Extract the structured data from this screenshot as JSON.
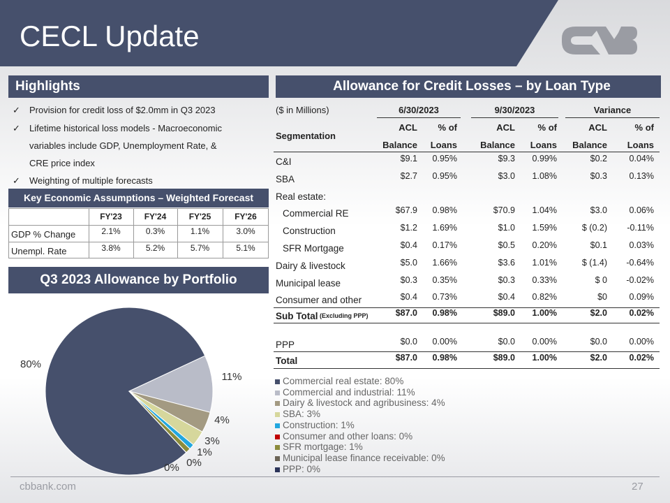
{
  "header": {
    "title": "CECL Update"
  },
  "highlights": {
    "heading": "Highlights",
    "bullets": [
      "Provision for credit loss of $2.0mm in Q3 2023",
      "Lifetime historical loss models - Macroeconomic",
      "variables include GDP, Unemployment Rate, &",
      "CRE price index",
      "Weighting of multiple forecasts"
    ]
  },
  "assumptions": {
    "heading": "Key Economic Assumptions – Weighted Forecast",
    "columns": [
      "FY'23",
      "FY'24",
      "FY'25",
      "FY'26"
    ],
    "rows": [
      {
        "label": "GDP % Change",
        "cells": [
          "2.1%",
          "0.3%",
          "1.1%",
          "3.0%"
        ]
      },
      {
        "label": "Unempl. Rate",
        "cells": [
          "3.8%",
          "5.2%",
          "5.7%",
          "5.1%"
        ]
      }
    ]
  },
  "portfolio": {
    "heading": "Q3 2023 Allowance by Portfolio",
    "chart": {
      "type": "pie",
      "categories": [
        "Commercial real estate: 80%",
        "Commercial and industrial: 11%",
        "Dairy & livestock and agribusiness: 4%",
        "SBA: 3%",
        "Construction: 1%",
        "Consumer and other loans: 0%",
        "SFR mortgage: 1%",
        "Municipal lease finance receivable: 0%",
        "PPP: 0%"
      ],
      "values": [
        80,
        11,
        4,
        3,
        1,
        0,
        1,
        0,
        0
      ],
      "value_labels": [
        "80%",
        "11%",
        "4%",
        "3%",
        "1%",
        null,
        null,
        "0%",
        "0%"
      ],
      "colors": [
        "#46506c",
        "#b9bcc8",
        "#a39a82",
        "#d6d79c",
        "#22a7df",
        "#c00000",
        "#8c8c3c",
        "#6b6456",
        "#2b3459"
      ]
    }
  },
  "acl": {
    "heading": "Allowance for Credit Losses – by Loan Type",
    "units": "($ in Millions)",
    "periods": [
      "6/30/2023",
      "9/30/2023",
      "Variance"
    ],
    "segmentation": "Segmentation",
    "col_top": [
      "ACL",
      "% of",
      "ACL",
      "% of",
      "ACL",
      "% of"
    ],
    "col_bottom": [
      "Balance",
      "Loans",
      "Balance",
      "Loans",
      "Balance",
      "Loans"
    ],
    "rows": [
      {
        "label": "C&I",
        "cells": [
          "$9.1",
          "0.95%",
          "$9.3",
          "0.99%",
          "$0.2",
          "0.04%"
        ]
      },
      {
        "label": "SBA",
        "cells": [
          "$2.7",
          "0.95%",
          "$3.0",
          "1.08%",
          "$0.3",
          "0.13%"
        ]
      },
      {
        "label": "Real estate:",
        "rows": [
          {
            "label": "Commercial RE",
            "cells": [
              "$67.9",
              "0.98%",
              "$70.9",
              "1.04%",
              "$3.0",
              "0.06%"
            ]
          },
          {
            "label": "Construction",
            "cells": [
              "$1.2",
              "1.69%",
              "$1.0",
              "1.59%",
              "$ (0.2)",
              "-0.11%"
            ]
          },
          {
            "label": "SFR Mortgage",
            "cells": [
              "$0.4",
              "0.17%",
              "$0.5",
              "0.20%",
              "$0.1",
              "0.03%"
            ]
          }
        ]
      },
      {
        "label": "Dairy & livestock",
        "cells": [
          "$5.0",
          "1.66%",
          "$3.6",
          "1.01%",
          "$ (1.4)",
          "-0.64%"
        ]
      },
      {
        "label": "Municipal lease",
        "cells": [
          "$0.3",
          "0.35%",
          "$0.3",
          "0.33%",
          "$ 0",
          "-0.02%"
        ]
      },
      {
        "label": "Consumer and other",
        "cells": [
          "$0.4",
          "0.73%",
          "$0.4",
          "0.82%",
          "$0",
          "0.09%"
        ]
      }
    ],
    "subtotal": {
      "label": "Sub Total",
      "note": "(Excluding PPP)",
      "cells": [
        "$87.0",
        "0.98%",
        "$89.0",
        "1.00%",
        "$2.0",
        "0.02%"
      ]
    },
    "ppp": {
      "label": "PPP",
      "cells": [
        "$0.0",
        "0.00%",
        "$0.0",
        "0.00%",
        "$0.0",
        "0.00%"
      ]
    },
    "total": {
      "label": "Total",
      "cells": [
        "$87.0",
        "0.98%",
        "$89.0",
        "1.00%",
        "$2.0",
        "0.02%"
      ]
    }
  },
  "footer": {
    "site": "cbbank.com",
    "page": "27"
  }
}
